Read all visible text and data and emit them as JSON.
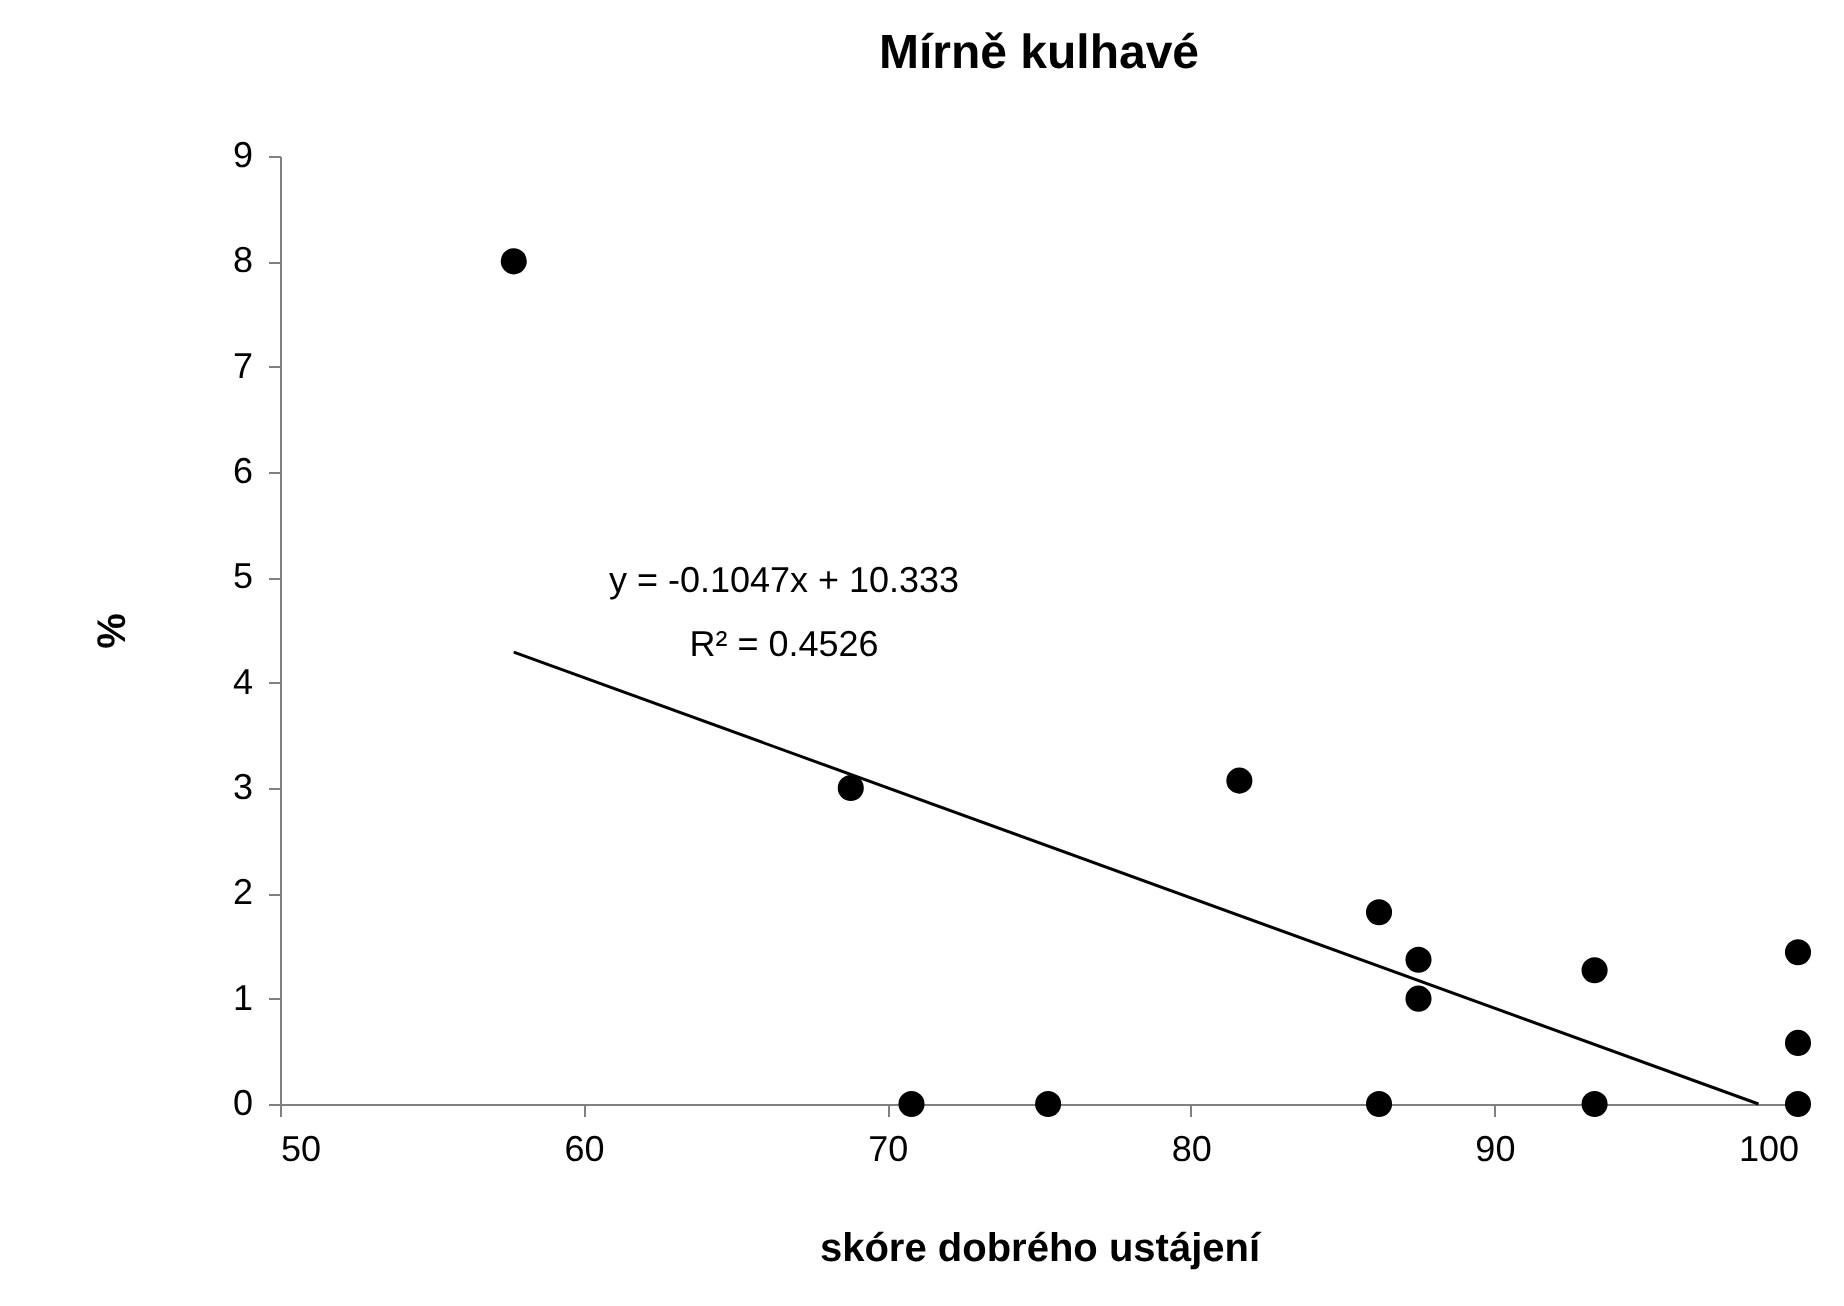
{
  "chart_data": {
    "type": "scatter",
    "title": "Mírně kulhavé",
    "xlabel": "skóre dobrého ustájení",
    "ylabel": "%",
    "xlim": [
      50,
      100
    ],
    "xticks": [
      50,
      60,
      70,
      80,
      90,
      100
    ],
    "ylim": [
      0,
      9
    ],
    "yticks": [
      0,
      1,
      2,
      3,
      4,
      5,
      6,
      7,
      8,
      9
    ],
    "grid": false,
    "annotations": [
      "y = -0.1047x + 10.333",
      "R² = 0.4526"
    ],
    "series": [
      {
        "color": "#000000",
        "marker": "circle",
        "x": [
          57.7,
          68.8,
          70.8,
          75.3,
          81.6,
          86.2,
          86.2,
          87.5,
          87.5,
          93.3,
          93.3,
          100,
          100,
          100
        ],
        "values": [
          8,
          3,
          0,
          0,
          3.07,
          1.82,
          0,
          1.37,
          1.0,
          1.27,
          0,
          1.44,
          0.58,
          0
        ]
      },
      {
        "type": "line",
        "color": "#000000",
        "line_style": "solid",
        "x": [
          57.7,
          98.7
        ],
        "values": [
          4.29,
          0
        ]
      }
    ]
  }
}
